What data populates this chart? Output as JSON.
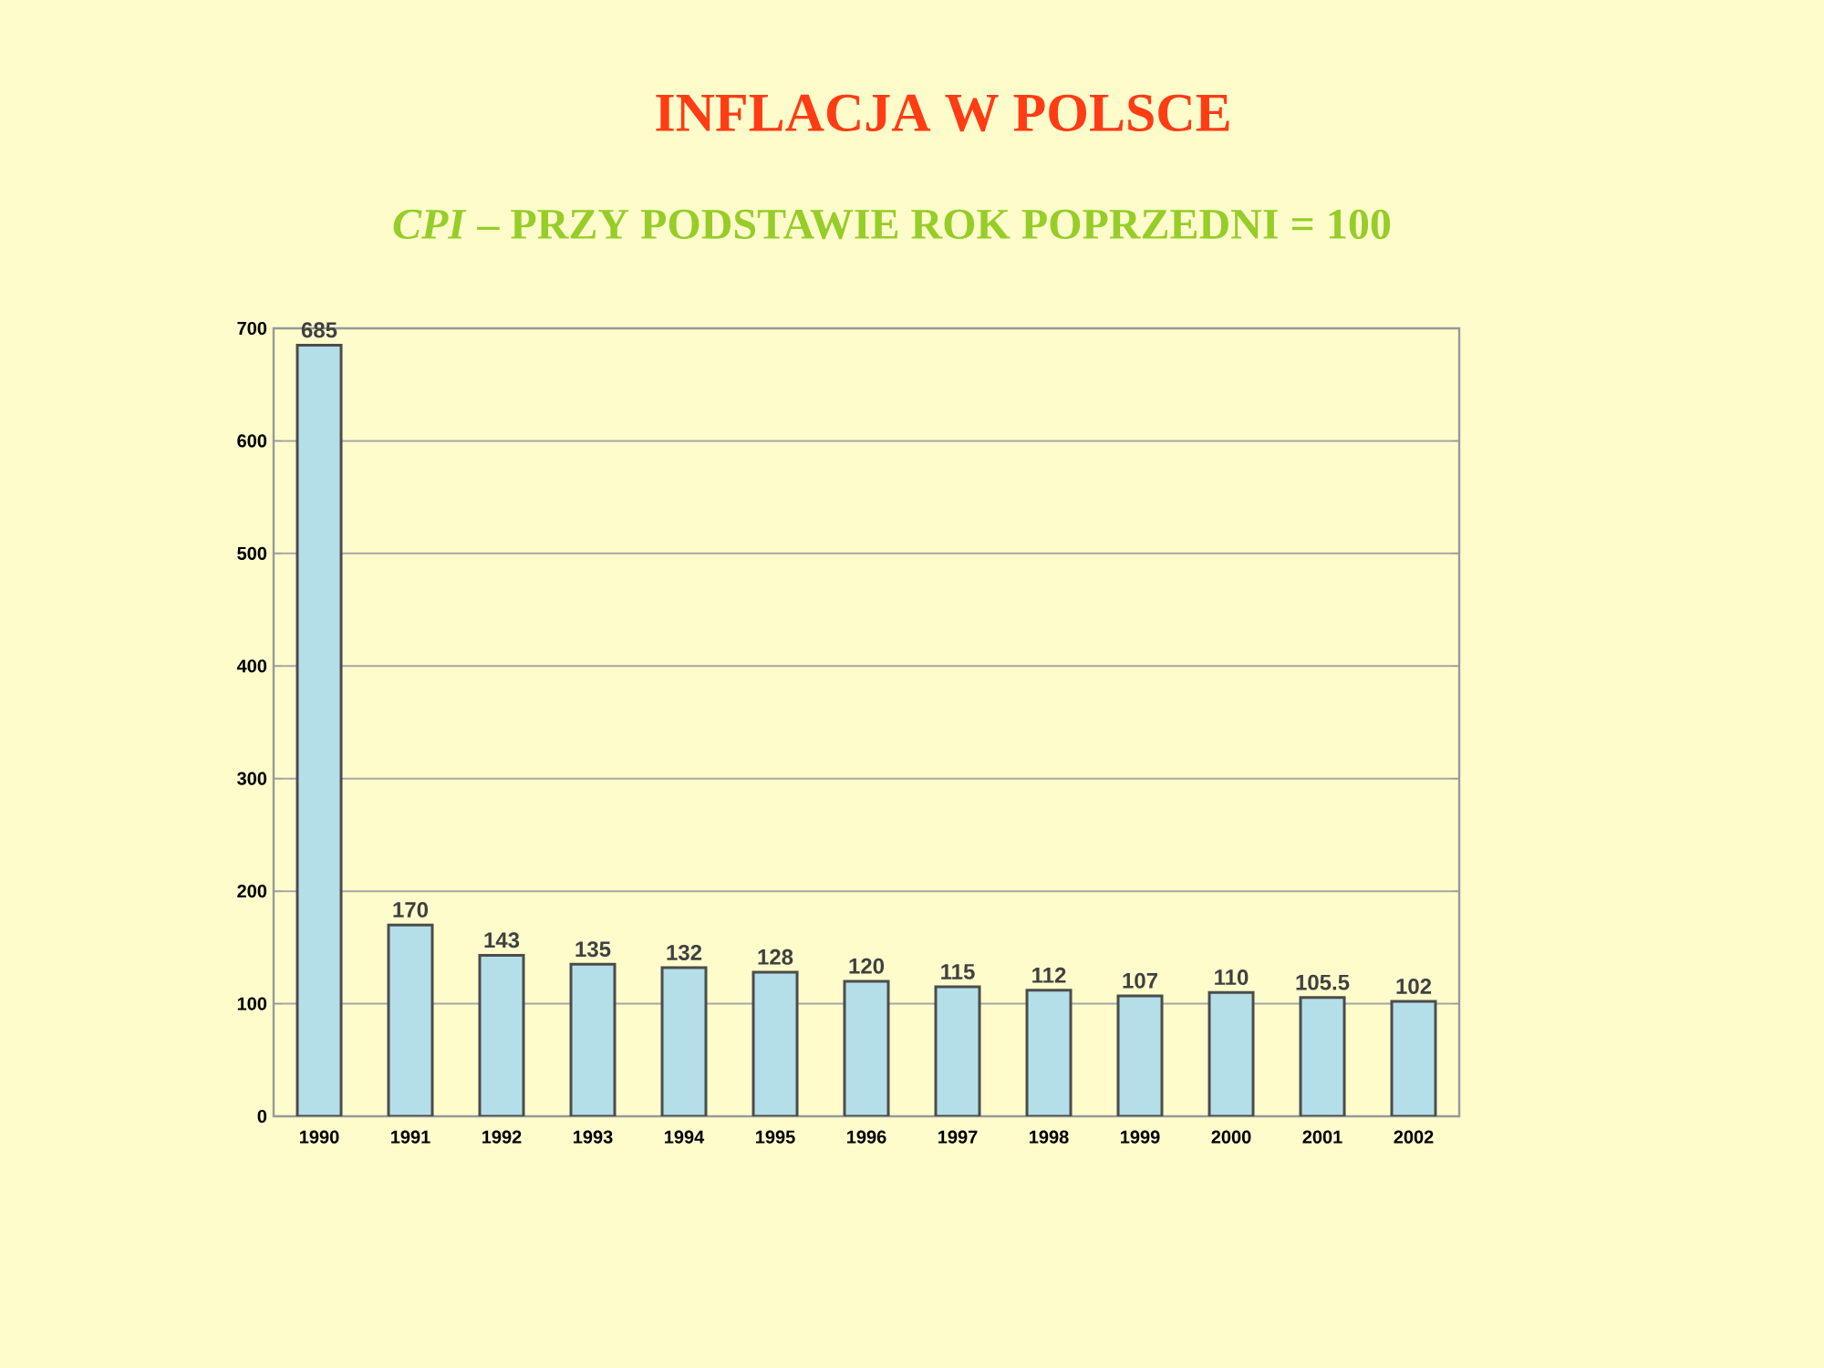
{
  "chart_data": {
    "type": "bar",
    "title": "INFLACJA  W  POLSCE",
    "subtitle": "*CPI* – PRZY  PODSTAWIE  ROK  POPRZEDNI  = 100",
    "categories": [
      "1990",
      "1991",
      "1992",
      "1993",
      "1994",
      "1995",
      "1996",
      "1997",
      "1998",
      "1999",
      "2000",
      "2001",
      "2002"
    ],
    "values": [
      685,
      170,
      143,
      135,
      132,
      128,
      120,
      115,
      112,
      107,
      110,
      105.5,
      102
    ],
    "color": "#b4dfe8",
    "ylim": [
      0,
      700
    ],
    "yticks": [
      0,
      100,
      200,
      300,
      400,
      500,
      600,
      700
    ],
    "grid": "y",
    "data_labels": true
  }
}
